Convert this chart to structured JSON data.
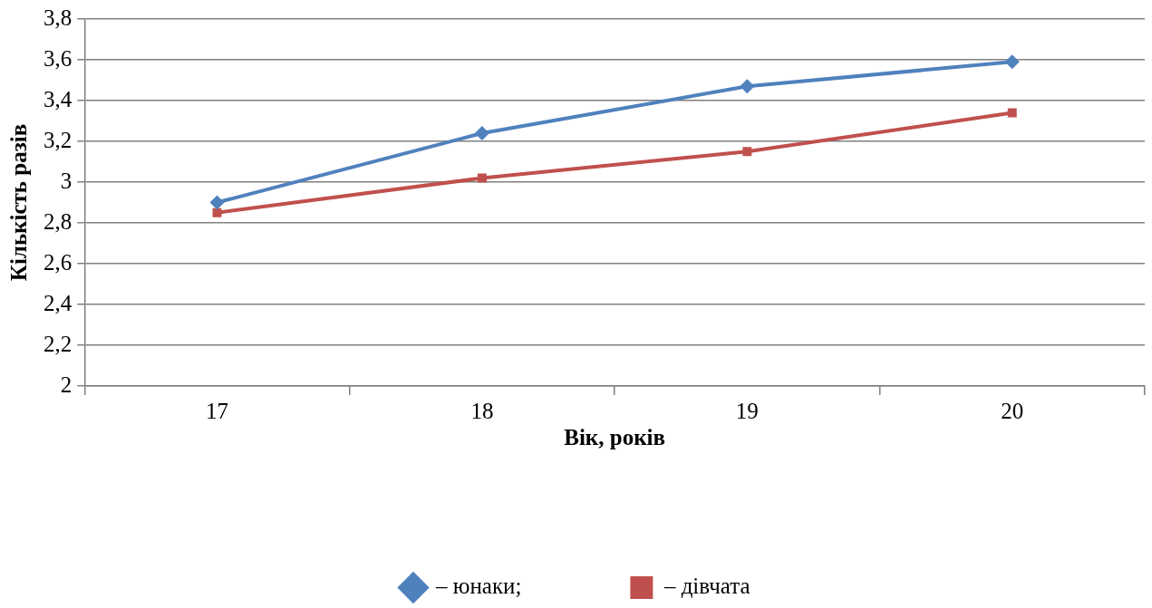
{
  "chart_data": {
    "type": "line",
    "xlabel": "Вік, років",
    "ylabel": "Кількість разів",
    "categories": [
      "17",
      "18",
      "19",
      "20"
    ],
    "series": [
      {
        "name": "– юнаки;",
        "color": "#4f81bd",
        "marker": "diamond",
        "values": [
          2.9,
          3.24,
          3.47,
          3.59
        ]
      },
      {
        "name": "– дівчата",
        "color": "#c0504d",
        "marker": "square",
        "values": [
          2.85,
          3.02,
          3.15,
          3.34
        ]
      }
    ],
    "ylim": [
      2,
      3.8
    ],
    "yticks": [
      2,
      {
        "value": 2.2,
        "label": "2,2"
      },
      {
        "value": 2.4,
        "label": "2,4"
      },
      {
        "value": 2.6,
        "label": "2,6"
      },
      {
        "value": 2.8,
        "label": "2,8"
      },
      3,
      {
        "value": 3.2,
        "label": "3,2"
      },
      {
        "value": 3.4,
        "label": "3,4"
      },
      {
        "value": 3.6,
        "label": "3,6"
      },
      {
        "value": 3.8,
        "label": "3,8"
      }
    ],
    "grid": "y",
    "legend": "bottom",
    "line_style": "solid"
  }
}
